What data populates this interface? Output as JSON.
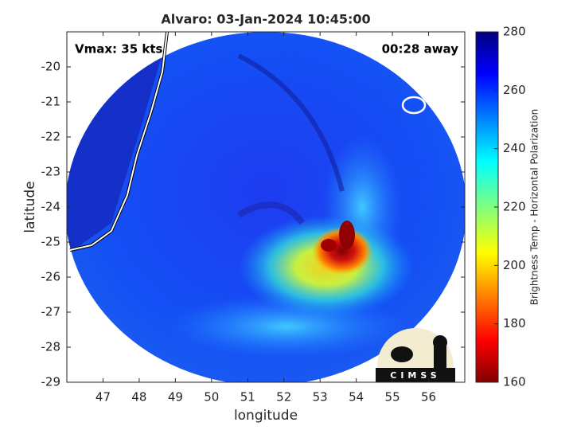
{
  "chart_data": {
    "type": "map",
    "title": "Alvaro: 03-Jan-2024 10:45:00",
    "annotations": [
      "Vmax: 35 kts",
      "00:28 away"
    ],
    "xlabel": "longitude",
    "ylabel": "latitude",
    "xlim": [
      46,
      57
    ],
    "ylim": [
      -29,
      -19
    ],
    "xticks": [
      47,
      48,
      49,
      50,
      51,
      52,
      53,
      54,
      55,
      56
    ],
    "yticks": [
      -20,
      -21,
      -22,
      -23,
      -24,
      -25,
      -26,
      -27,
      -28,
      -29
    ],
    "colorbar": {
      "label": "Brightness Temp - Horizontal Polarization",
      "lim": [
        160,
        280
      ],
      "ticks": [
        160,
        180,
        200,
        220,
        240,
        260,
        280
      ]
    },
    "logo": "CIMSS"
  }
}
